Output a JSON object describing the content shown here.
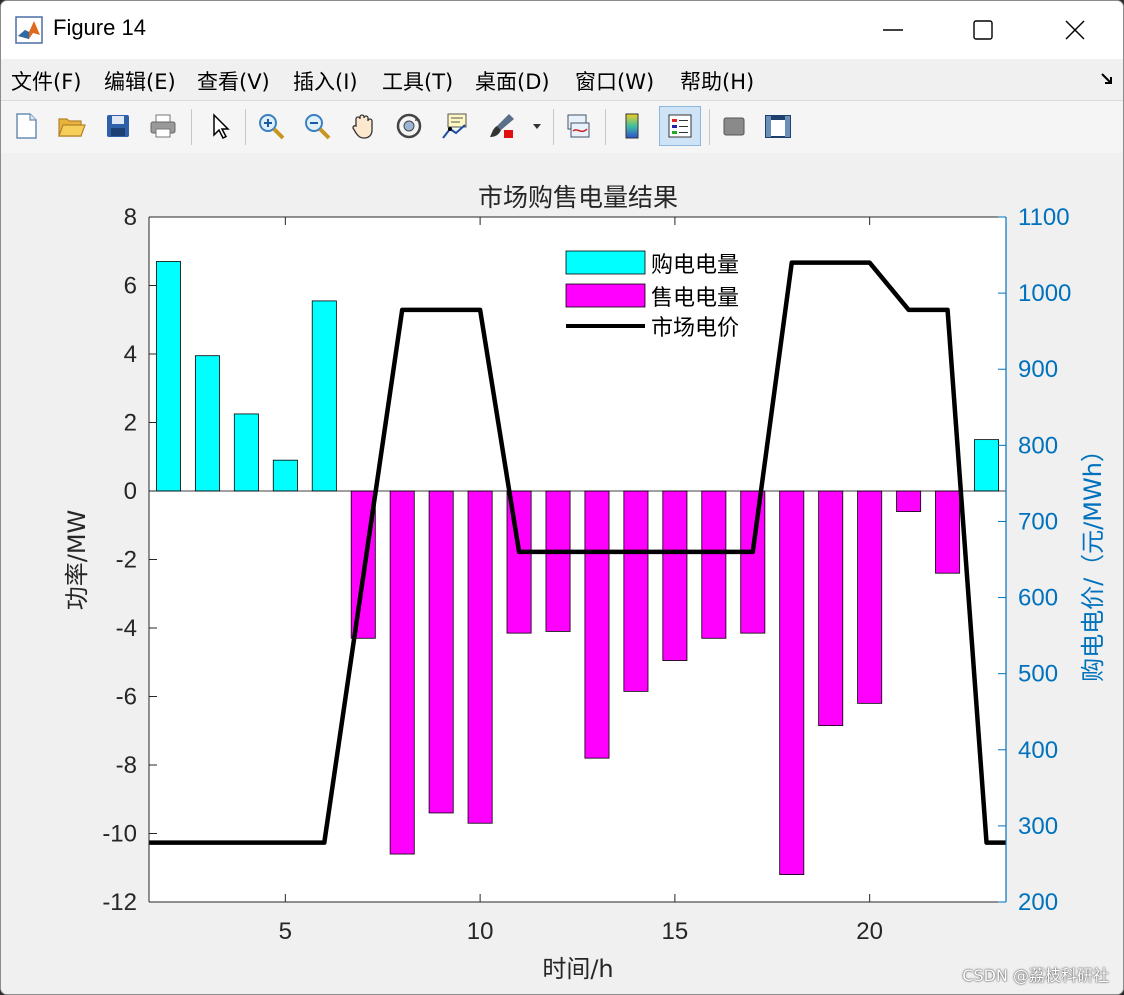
{
  "window": {
    "title": "Figure 14",
    "minimize_symbol": "—",
    "maximize_symbol": "☐",
    "close_symbol": "✕"
  },
  "menu": [
    "文件(F)",
    "编辑(E)",
    "查看(V)",
    "插入(I)",
    "工具(T)",
    "桌面(D)",
    "窗口(W)",
    "帮助(H)"
  ],
  "toolbar_icons": [
    "new-figure-icon",
    "open-file-icon",
    "save-icon",
    "print-icon",
    "pointer-icon",
    "zoom-in-icon",
    "zoom-out-icon",
    "pan-hand-icon",
    "rotate-3d-icon",
    "data-cursor-icon",
    "brush-icon",
    "brush-dropdown-icon",
    "link-plot-icon",
    "colorbar-icon",
    "legend-icon",
    "hide-plot-tools-icon",
    "show-plot-tools-icon"
  ],
  "watermark": "CSDN @荔枝科研社",
  "colors": {
    "buy": "#00ffff",
    "sell": "#ff00ff",
    "price": "#000000",
    "right_axis": "#0072bd"
  },
  "chart_data": {
    "type": "bar",
    "title": "市场购售电量结果",
    "xlabel": "时间/h",
    "ylabel": "功率/MW",
    "ylabel_right": "购电电价/（元/MWh）",
    "xlim": [
      1.5,
      23.5
    ],
    "ylim": [
      -12,
      8
    ],
    "ylim_right": [
      200,
      1100
    ],
    "x_ticks": [
      5,
      10,
      15,
      20
    ],
    "y_ticks": [
      -12,
      -10,
      -8,
      -6,
      -4,
      -2,
      0,
      2,
      4,
      6,
      8
    ],
    "y_ticks_right": [
      200,
      300,
      400,
      500,
      600,
      700,
      800,
      900,
      1000,
      1100
    ],
    "grid": false,
    "legend_position": "top-center",
    "x": [
      2,
      3,
      4,
      5,
      6,
      7,
      8,
      9,
      10,
      11,
      12,
      13,
      14,
      15,
      16,
      17,
      18,
      19,
      20,
      21,
      22,
      23
    ],
    "series": [
      {
        "name": "购电电量",
        "type": "bar",
        "axis": "left",
        "values": [
          6.7,
          3.95,
          2.25,
          0.9,
          5.55,
          0,
          0,
          0,
          0,
          0,
          0,
          0,
          0,
          0,
          0,
          0,
          0,
          0,
          0,
          0,
          0,
          1.5
        ]
      },
      {
        "name": "售电电量",
        "type": "bar",
        "axis": "left",
        "values": [
          0,
          0,
          0,
          0,
          0,
          -4.3,
          -10.6,
          -9.4,
          -9.7,
          -4.15,
          -4.1,
          -7.8,
          -5.85,
          -4.95,
          -4.3,
          -4.15,
          -11.2,
          -6.85,
          -6.2,
          -0.6,
          -2.4,
          0
        ]
      },
      {
        "name": "市场电价",
        "type": "line",
        "axis": "right",
        "x": [
          1.5,
          6,
          8,
          10,
          11,
          17,
          18,
          20,
          21,
          22,
          23,
          23.5
        ],
        "values": [
          278,
          278,
          978,
          978,
          660,
          660,
          1040,
          1040,
          978,
          978,
          278,
          278
        ]
      }
    ]
  }
}
